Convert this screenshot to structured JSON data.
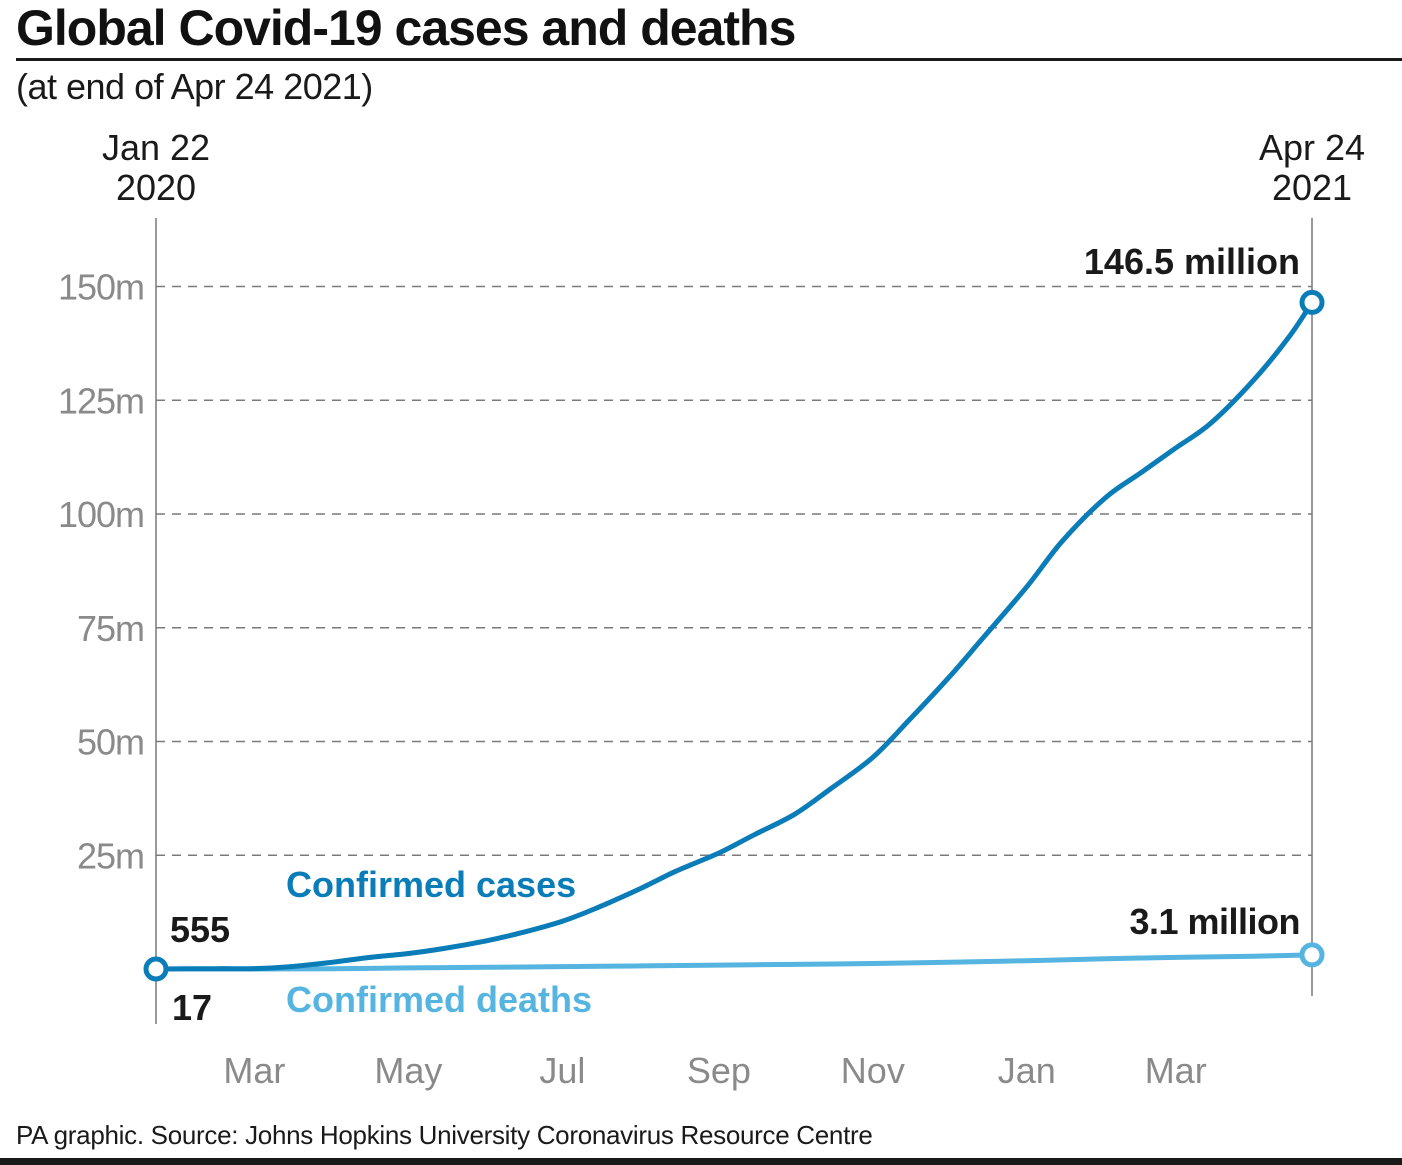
{
  "header": {
    "title": "Global Covid-19 cases and deaths",
    "subtitle": "(at end of Apr 24 2021)"
  },
  "footer": {
    "source": "PA graphic. Source: Johns Hopkins University Coronavirus Resource Centre"
  },
  "colors": {
    "cases": "#0a7cb8",
    "deaths": "#56b4e0",
    "grid": "#7a7a7a",
    "axis_text": "#8a8a8a",
    "text": "#1a1a1a"
  },
  "chart_data": {
    "type": "line",
    "x_range": [
      "2020-01-22",
      "2021-04-24"
    ],
    "ylim": [
      0,
      160000000
    ],
    "y_ticks": [
      {
        "value": 25000000,
        "label": "25m"
      },
      {
        "value": 50000000,
        "label": "50m"
      },
      {
        "value": 75000000,
        "label": "75m"
      },
      {
        "value": 100000000,
        "label": "100m"
      },
      {
        "value": 125000000,
        "label": "125m"
      },
      {
        "value": 150000000,
        "label": "150m"
      }
    ],
    "x_ticks": [
      {
        "date": "2020-03-01",
        "label": "Mar"
      },
      {
        "date": "2020-05-01",
        "label": "May"
      },
      {
        "date": "2020-07-01",
        "label": "Jul"
      },
      {
        "date": "2020-09-01",
        "label": "Sep"
      },
      {
        "date": "2020-11-01",
        "label": "Nov"
      },
      {
        "date": "2021-01-01",
        "label": "Jan"
      },
      {
        "date": "2021-03-01",
        "label": "Mar"
      }
    ],
    "start_label": [
      "Jan 22",
      "2020"
    ],
    "end_label": [
      "Apr 24",
      "2021"
    ],
    "grid": true,
    "series": [
      {
        "name": "Confirmed cases",
        "color": "#0a7cb8",
        "start_value_label": "555",
        "end_value_label": "146.5 million",
        "points": [
          [
            "2020-01-22",
            555
          ],
          [
            "2020-02-15",
            70000
          ],
          [
            "2020-03-01",
            88000
          ],
          [
            "2020-03-15",
            500000
          ],
          [
            "2020-04-01",
            1500000
          ],
          [
            "2020-04-15",
            2500000
          ],
          [
            "2020-05-01",
            3400000
          ],
          [
            "2020-05-15",
            4500000
          ],
          [
            "2020-06-01",
            6200000
          ],
          [
            "2020-06-15",
            8000000
          ],
          [
            "2020-07-01",
            10500000
          ],
          [
            "2020-07-15",
            13500000
          ],
          [
            "2020-08-01",
            17700000
          ],
          [
            "2020-08-15",
            21500000
          ],
          [
            "2020-09-01",
            25500000
          ],
          [
            "2020-09-15",
            29500000
          ],
          [
            "2020-10-01",
            34000000
          ],
          [
            "2020-10-15",
            39500000
          ],
          [
            "2020-11-01",
            46500000
          ],
          [
            "2020-11-15",
            54500000
          ],
          [
            "2020-12-01",
            64000000
          ],
          [
            "2020-12-15",
            73000000
          ],
          [
            "2021-01-01",
            84000000
          ],
          [
            "2021-01-15",
            94000000
          ],
          [
            "2021-02-01",
            103500000
          ],
          [
            "2021-02-15",
            109000000
          ],
          [
            "2021-03-01",
            114500000
          ],
          [
            "2021-03-15",
            120000000
          ],
          [
            "2021-04-01",
            129500000
          ],
          [
            "2021-04-15",
            139000000
          ],
          [
            "2021-04-24",
            146500000
          ]
        ]
      },
      {
        "name": "Confirmed deaths",
        "color": "#56b4e0",
        "start_value_label": "17",
        "end_value_label": "3.1 million",
        "points": [
          [
            "2020-01-22",
            17
          ],
          [
            "2020-03-01",
            3000
          ],
          [
            "2020-04-01",
            50000
          ],
          [
            "2020-05-01",
            240000
          ],
          [
            "2020-06-01",
            380000
          ],
          [
            "2020-07-01",
            520000
          ],
          [
            "2020-08-01",
            690000
          ],
          [
            "2020-09-01",
            860000
          ],
          [
            "2020-10-01",
            1020000
          ],
          [
            "2020-11-01",
            1200000
          ],
          [
            "2020-12-01",
            1480000
          ],
          [
            "2021-01-01",
            1830000
          ],
          [
            "2021-02-01",
            2250000
          ],
          [
            "2021-03-01",
            2550000
          ],
          [
            "2021-04-01",
            2820000
          ],
          [
            "2021-04-24",
            3100000
          ]
        ]
      }
    ]
  }
}
